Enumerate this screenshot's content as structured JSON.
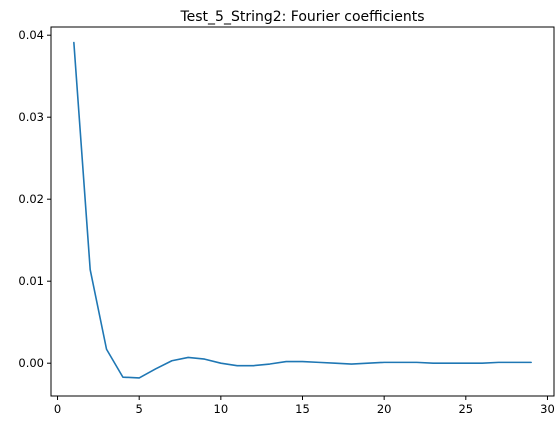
{
  "chart_data": {
    "type": "line",
    "title": "Test_5_String2: Fourier coefficients",
    "xlabel": "",
    "ylabel": "",
    "xlim": [
      -0.4,
      30.4
    ],
    "ylim": [
      -0.004,
      0.041
    ],
    "xticks": [
      0,
      5,
      10,
      15,
      20,
      25,
      30
    ],
    "xtick_labels": [
      "0",
      "5",
      "10",
      "15",
      "20",
      "25",
      "30"
    ],
    "yticks": [
      0.0,
      0.01,
      0.02,
      0.03,
      0.04
    ],
    "ytick_labels": [
      "0.00",
      "0.01",
      "0.02",
      "0.03",
      "0.04"
    ],
    "grid": false,
    "series": [
      {
        "color": "#1f77b4",
        "x": [
          1,
          2,
          3,
          4,
          5,
          6,
          7,
          8,
          9,
          10,
          11,
          12,
          13,
          14,
          15,
          16,
          17,
          18,
          19,
          20,
          21,
          22,
          23,
          24,
          25,
          26,
          27,
          28,
          29
        ],
        "values": [
          0.0391,
          0.0114,
          0.0017,
          -0.0017,
          -0.0018,
          -0.0007,
          0.0003,
          0.0007,
          0.0005,
          0.0,
          -0.0003,
          -0.0003,
          -0.0001,
          0.0002,
          0.0002,
          0.0001,
          0.0,
          -0.0001,
          0.0,
          0.0001,
          0.0001,
          0.0001,
          0.0,
          0.0,
          0.0,
          0.0,
          0.0001,
          0.0001,
          0.0001
        ]
      }
    ]
  }
}
